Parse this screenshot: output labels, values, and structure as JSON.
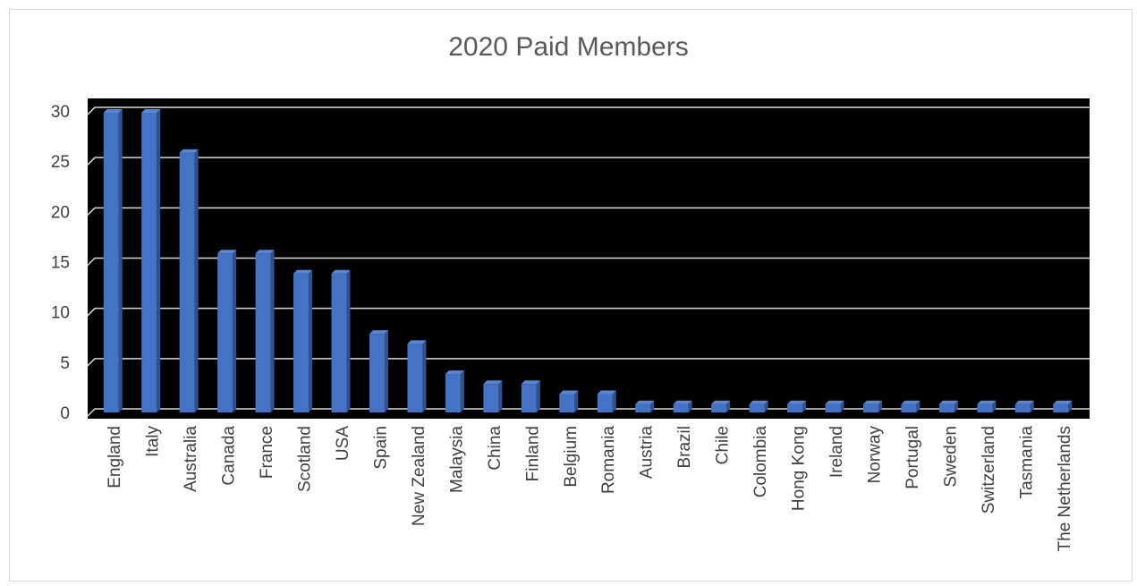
{
  "chart_data": {
    "type": "bar",
    "title": "2020 Paid Members",
    "xlabel": "",
    "ylabel": "",
    "ylim": [
      0,
      30
    ],
    "yticks": [
      0,
      5,
      10,
      15,
      20,
      25,
      30
    ],
    "grid": true,
    "style": "3d-columns",
    "colors": {
      "bar": "#4472c4",
      "bar_side": "#2f528f",
      "bar_top": "#5b86d4",
      "plot_bg": "#000000",
      "gridline": "#d9d9d9"
    },
    "categories": [
      "England",
      "Italy",
      "Australia",
      "Canada",
      "France",
      "Scotland",
      "USA",
      "Spain",
      "New Zealand",
      "Malaysia",
      "China",
      "Finland",
      "Belgium",
      "Romania",
      "Austria",
      "Brazil",
      "Chile",
      "Colombia",
      "Hong Kong",
      "Ireland",
      "Norway",
      "Portugal",
      "Sweden",
      "Switzerland",
      "Tasmania",
      "The Netherlands"
    ],
    "values": [
      30,
      30,
      26,
      16,
      16,
      14,
      14,
      8,
      7,
      4,
      3,
      3,
      2,
      2,
      1,
      1,
      1,
      1,
      1,
      1,
      1,
      1,
      1,
      1,
      1,
      1
    ]
  }
}
